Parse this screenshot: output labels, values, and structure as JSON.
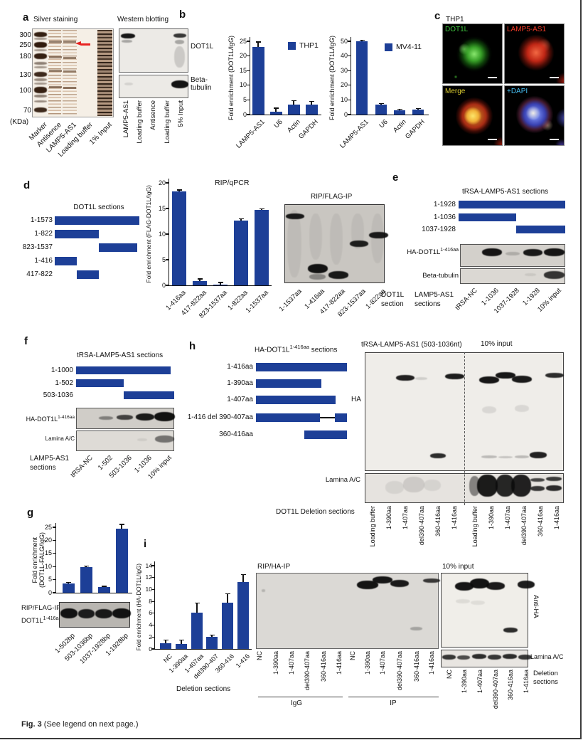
{
  "figure": {
    "caption_bold": "Fig. 3",
    "caption_rest": " (See legend on next page.)"
  },
  "colors": {
    "bar_blue": "#1d3f97",
    "arrow_red": "#e82321"
  },
  "panel_a": {
    "label": "a",
    "silver_title": "Silver staining",
    "western_title": "Western blotting",
    "kda_markers": [
      "300",
      "250",
      "180",
      "130",
      "100",
      "70"
    ],
    "kda_unit": "(KDa)",
    "gel_lanes": [
      "Marker",
      "Antisence",
      "LAMP5-AS1",
      "Loading buffer",
      "1% Input"
    ],
    "wb_lanes": [
      "LAMP5-AS1",
      "Loading buffer",
      "Antisence",
      "Loading buffer",
      "5% Input"
    ],
    "wb_band_labels": [
      "DOT1L",
      "Beta-tubulin"
    ]
  },
  "panel_b": {
    "label": "b",
    "charts": [
      {
        "type": "bar",
        "legend": "THP1",
        "ylabel": "Fold enrichment (DOT1L/IgG)",
        "ymax": 25,
        "ystep": 5,
        "categories": [
          "LAMP5-AS1",
          "U6",
          "Actin",
          "GAPDH"
        ],
        "values": [
          23,
          0.9,
          3.5,
          3.3
        ],
        "errors": [
          1.8,
          1.3,
          1.3,
          1.2
        ]
      },
      {
        "type": "bar",
        "legend": "MV4-11",
        "ylabel": "Fold enrichment (DOT1L/IgG)",
        "ymax": 50,
        "ystep": 10,
        "categories": [
          "LAMP5-AS1",
          "U6",
          "Actin",
          "GAPDH"
        ],
        "values": [
          50,
          7,
          3,
          3.5
        ],
        "errors": [
          0.8,
          0.7,
          0.5,
          0.5
        ]
      }
    ]
  },
  "panel_c": {
    "label": "c",
    "cell_line": "THP1",
    "images": [
      {
        "label": "DOT1L",
        "label_color": "#3ec43e"
      },
      {
        "label": "LAMP5-AS1",
        "label_color": "#f23b28"
      },
      {
        "label": "Merge",
        "label_color": "#d9cb30"
      },
      {
        "label": "+DAPI",
        "label_color": "#46bdf0"
      }
    ]
  },
  "panel_d": {
    "label": "d",
    "sections_title": "DOT1L sections",
    "section_labels": [
      "1-1573",
      "1-822",
      "823-1537",
      "1-416",
      "417-822"
    ],
    "chart": {
      "type": "bar",
      "title": "RIP/qPCR",
      "ylabel": "Fold enrichment (FLAG-DOT1L/IgG)",
      "ymax": 20,
      "ystep": 5,
      "categories": [
        "1-416aa",
        "417-822aa",
        "823-1537aa",
        "1-822aa",
        "1-1537aa"
      ],
      "values": [
        18.3,
        0.9,
        0.2,
        12.7,
        14.7
      ],
      "errors": [
        0.3,
        0.35,
        0.35,
        0.25,
        0.2
      ]
    },
    "blot_title": "RIP/FLAG-IP",
    "blot_lanes": [
      "1-1537aa",
      "1-416aa",
      "417-822aa",
      "823-1537aa",
      "1-822aa"
    ],
    "blot_axis_label": [
      "DOT1L",
      "section"
    ]
  },
  "panel_e": {
    "label": "e",
    "sections_title": "tRSA-LAMP5-AS1 sections",
    "section_labels": [
      "1-1928",
      "1-1036",
      "1037-1928"
    ],
    "blot1_label_base": "HA-DOT1L",
    "blot1_label_sup": "1-416aa",
    "blot2_label": "Beta-tubulin",
    "lanes_label": [
      "LAMP5-AS1",
      "sections"
    ],
    "blot_lanes": [
      "tRSA-NC",
      "1-1036",
      "1037-1928",
      "1-1928",
      "10% input"
    ]
  },
  "panel_f": {
    "label": "f",
    "sections_title": "tRSA-LAMP5-AS1 sections",
    "section_labels": [
      "1-1000",
      "1-502",
      "503-1036"
    ],
    "blot1_label_base": "HA-DOT1L",
    "blot1_label_sup": "1-416aa",
    "blot2_label": "Lamina A/C",
    "lanes_label": [
      "LAMP5-AS1",
      "sections"
    ],
    "blot_lanes": [
      "tRSA-NC",
      "1-502",
      "503-1036",
      "1-1036",
      "10% input"
    ]
  },
  "panel_g": {
    "label": "g",
    "chart": {
      "type": "bar",
      "ylabel_lines": [
        "Fold enrichment",
        "(DOT1L-FALG/IgG)"
      ],
      "ymax": 25,
      "ystep": 5,
      "categories": [
        "1-502bp",
        "503-1036bp",
        "1037-1928bp",
        "1-1928bp"
      ],
      "values": [
        3.5,
        9.8,
        2.2,
        24.5
      ],
      "errors": [
        0.4,
        0.45,
        0.25,
        1.6
      ]
    },
    "blot_label1": "RIP/FLAG-IP",
    "blot_label2_base": "DOT1L",
    "blot_label2_sup": "1-416aa",
    "blot_lanes": [
      "1-502bp",
      "503-1036bp",
      "1037-1928bp",
      "1-1928bp"
    ]
  },
  "panel_h": {
    "label": "h",
    "sections_title_base": "HA-DOT1L",
    "sections_title_sup": "1-416aa",
    "sections_title_rest": " sections",
    "section_labels": [
      "1-416aa",
      "1-390aa",
      "1-407aa",
      "1-416 del 390-407aa",
      "360-416aa"
    ],
    "blot_title_left": "tRSA-LAMP5-AS1 (503-1036nt)",
    "blot_title_right": "10% input",
    "ha_label": "HA",
    "lamina_label": "Lamina A/C",
    "lanes_axis_label": "DOT1L Deletion sections",
    "blot_lanes": [
      "Loading buffer",
      "1-390aa",
      "1-407aa",
      "del390-407aa",
      "360-416aa",
      "1-416aa",
      "Loading buffer",
      "1-390aa",
      "1-407aa",
      "del390-407aa",
      "360-416aa",
      "1-416aa"
    ]
  },
  "panel_i": {
    "label": "i",
    "chart": {
      "type": "bar",
      "ylabel": "Fold enrichment (HA-DOT1L/IgG)",
      "ymax": 14,
      "ystep": 2,
      "categories": [
        "NC",
        "1-390aa",
        "1-407aa",
        "del390-407",
        "360-416",
        "1-416"
      ],
      "values": [
        0.9,
        0.8,
        6.1,
        2.0,
        7.8,
        11.3
      ],
      "errors": [
        0.6,
        0.7,
        1.6,
        0.35,
        1.5,
        1.2
      ],
      "xlabel": "Deletion sections"
    },
    "big_blot_title": "RIP/HA-IP",
    "input_blot_title": "10% input",
    "anti_ha_label": "Anti-HA",
    "lamina_label": "Lamina A/C",
    "group_labels": [
      "IgG",
      "IP"
    ],
    "big_blot_lanes": [
      "NC",
      "1-390aa",
      "1-407aa",
      "del390-407aa",
      "360-416aa",
      "1-416aa",
      "NC",
      "1-390aa",
      "1-407aa",
      "del390-407aa",
      "360-416aa",
      "1-416aa"
    ],
    "input_blot_lanes": [
      "NC",
      "1-390aa",
      "1-407aa",
      "del390-407aa",
      "360-416aa",
      "1-416aa"
    ],
    "deletion_label": [
      "Deletion",
      "sections"
    ]
  }
}
